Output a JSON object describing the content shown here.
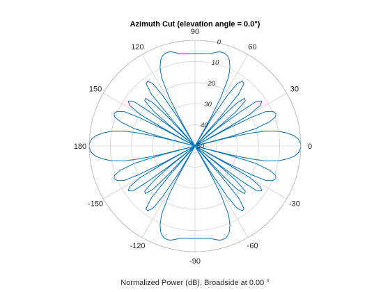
{
  "chart_data": {
    "type": "polar-line",
    "title": "Azimuth Cut (elevation angle = 0.0°)",
    "xlabel": "Normalized Power (dB), Broadside at 0.00 °",
    "angle_unit": "degrees",
    "angle_ticks": [
      0,
      30,
      60,
      90,
      120,
      150,
      180,
      -150,
      -120,
      -90,
      -60,
      -30
    ],
    "r_ticks": [
      0,
      10,
      20,
      30,
      40,
      50
    ],
    "r_tick_labels": [
      "0",
      "10",
      "20",
      "30",
      "40",
      "50"
    ],
    "r_direction": "inverted",
    "r_lim": [
      0,
      50
    ],
    "r_tick_label_angle": 80,
    "grid": true,
    "colors": {
      "series": "#0072bd",
      "grid": "#d0d0d0",
      "text": "#262626",
      "highlight_tick": "#d95319"
    },
    "highlight_tick_labels": [
      "-30"
    ],
    "series": [
      {
        "points": [
          [
            0,
            0
          ],
          [
            2,
            0.3
          ],
          [
            4,
            1.2
          ],
          [
            6,
            3
          ],
          [
            8,
            6
          ],
          [
            10,
            10
          ],
          [
            12,
            16
          ],
          [
            13,
            23
          ],
          [
            14,
            33
          ],
          [
            14.5,
            50
          ],
          [
            15,
            33
          ],
          [
            16,
            20
          ],
          [
            18,
            13
          ],
          [
            20,
            9.5
          ],
          [
            22,
            8.8
          ],
          [
            24,
            9.8
          ],
          [
            26,
            13
          ],
          [
            27,
            20
          ],
          [
            28,
            33
          ],
          [
            28.5,
            50
          ],
          [
            29,
            33
          ],
          [
            30,
            20
          ],
          [
            32,
            13.5
          ],
          [
            34,
            12
          ],
          [
            36,
            14
          ],
          [
            37,
            22
          ],
          [
            38,
            35
          ],
          [
            38.5,
            50
          ],
          [
            39,
            35
          ],
          [
            40,
            25
          ],
          [
            42,
            18
          ],
          [
            44,
            17.5
          ],
          [
            46,
            22
          ],
          [
            47,
            32
          ],
          [
            48,
            50
          ],
          [
            49,
            32
          ],
          [
            50,
            18
          ],
          [
            52,
            12.5
          ],
          [
            54,
            12
          ],
          [
            56,
            14.5
          ],
          [
            57.5,
            22
          ],
          [
            59,
            35
          ],
          [
            60,
            50
          ],
          [
            61,
            35
          ],
          [
            62,
            24
          ],
          [
            64,
            14
          ],
          [
            66,
            9.5
          ],
          [
            68,
            6.5
          ],
          [
            70,
            4.8
          ],
          [
            72,
            4
          ],
          [
            74,
            3.8
          ],
          [
            76,
            4.1
          ],
          [
            78,
            4.8
          ],
          [
            80,
            5.5
          ],
          [
            82,
            5.9
          ],
          [
            84,
            6.1
          ],
          [
            86,
            6.2
          ],
          [
            88,
            6.3
          ],
          [
            90,
            6.3
          ]
        ]
      }
    ]
  }
}
